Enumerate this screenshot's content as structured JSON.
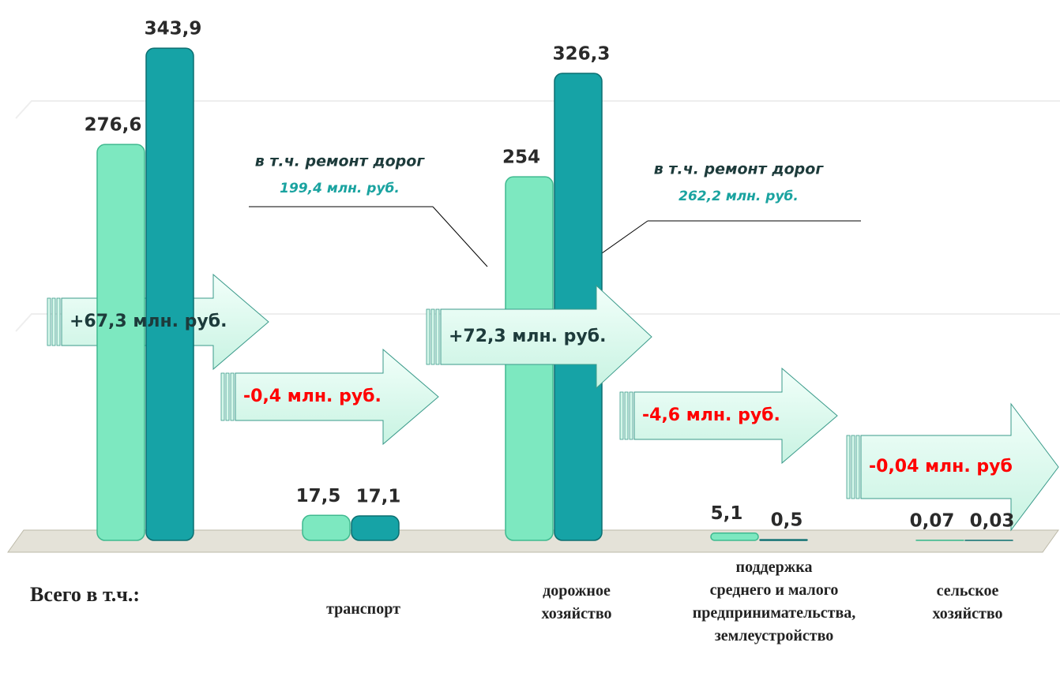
{
  "chart_data": {
    "type": "bar",
    "categories": [
      "Всего  в т.ч.:",
      "транспорт",
      "дорожное\nхозяйство",
      "поддержка\nсреднего и малого\nпредпринимательства,\nземлеустройство",
      "сельское\nхозяйство"
    ],
    "series": [
      {
        "color": "#7de8c0",
        "values": [
          276.6,
          17.5,
          254,
          5.1,
          0.07
        ],
        "value_labels": [
          "276,6",
          "17,5",
          "254",
          "5,1",
          "0,07"
        ]
      },
      {
        "color": "#16a3a6",
        "values": [
          343.9,
          17.1,
          326.3,
          0.5,
          0.03
        ],
        "value_labels": [
          "343,9",
          "17,1",
          "326,3",
          "0,5",
          "0,03"
        ]
      }
    ],
    "ylim": [
      0,
      350
    ],
    "annotations": [
      {
        "text": "+67,3 млн. руб.",
        "color": "#1d3b3b"
      },
      {
        "text": "-0,4 млн. руб.",
        "color": "#ff0000"
      },
      {
        "text": "+72,3 млн. руб.",
        "color": "#1d3b3b"
      },
      {
        "text": "-4,6 млн. руб.",
        "color": "#ff0000"
      },
      {
        "text": "-0,04 млн. руб",
        "color": "#ff0000"
      }
    ],
    "callouts": [
      {
        "label": "в т.ч. ремонт дорог",
        "amount": "199,4 млн. руб."
      },
      {
        "label": "в т.ч. ремонт дорог",
        "amount": "262,2 млн. руб."
      }
    ]
  }
}
